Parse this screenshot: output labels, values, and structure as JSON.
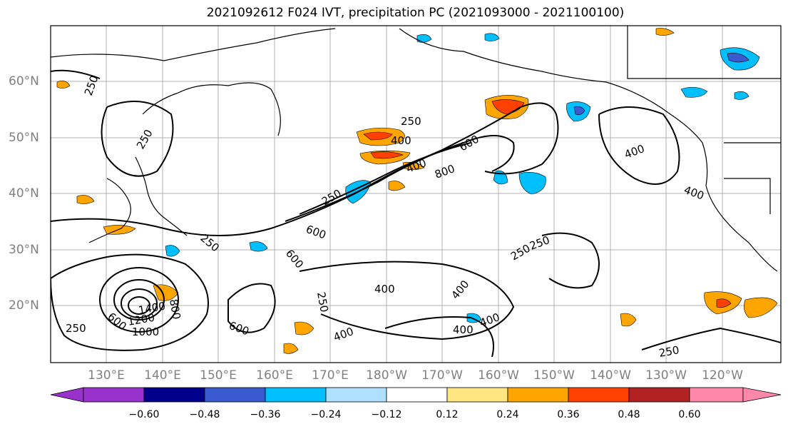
{
  "title": "2021092612 F024 IVT, precipitation PC (2021093000 - 2021100100)",
  "lat_labels": [
    "60°N",
    "50°N",
    "40°N",
    "30°N",
    "20°N"
  ],
  "lon_labels": [
    "130°E",
    "140°E",
    "150°E",
    "160°E",
    "170°E",
    "180°W",
    "170°W",
    "160°W",
    "150°W",
    "140°W",
    "130°W",
    "120°W"
  ],
  "contour_labels": [
    "250",
    "250",
    "250",
    "400",
    "400",
    "400",
    "400",
    "400",
    "400",
    "600",
    "600",
    "600",
    "800",
    "250",
    "400",
    "600",
    "250",
    "250",
    "250",
    "250",
    "400",
    "400",
    "250",
    "1000",
    "1200",
    "1400",
    "600",
    "800",
    "250"
  ],
  "colorbar": {
    "ticks": [
      "−0.60",
      "−0.48",
      "−0.36",
      "−0.24",
      "−0.12",
      "0.12",
      "0.24",
      "0.36",
      "0.48",
      "0.60"
    ],
    "colors": [
      "#9932CC",
      "#00008B",
      "#3A5BCF",
      "#00BFFF",
      "#B0E0FF",
      "#FFFFFF",
      "#FFE680",
      "#FFA500",
      "#FF4000",
      "#B22222",
      "#FF88AA"
    ]
  }
}
